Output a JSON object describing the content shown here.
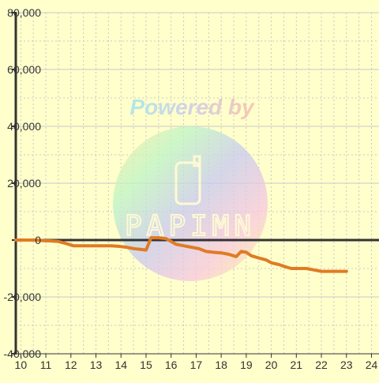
{
  "colors": {
    "background": "#ffffcc",
    "grid": "#c8c8c8",
    "axis": "#333333",
    "zero_line": "#333333",
    "series": "#e07b24"
  },
  "watermark": {
    "text": "Powered by",
    "logo_text": "PAPIMN",
    "icon": "phone-logo-icon"
  },
  "chart_data": {
    "type": "line",
    "title": "",
    "xlabel": "",
    "ylabel": "",
    "xlim": [
      9.8,
      24.3
    ],
    "ylim": [
      -40000,
      80000
    ],
    "grid": true,
    "x_ticks": [
      10,
      11,
      12,
      13,
      14,
      15,
      16,
      17,
      18,
      19,
      20,
      21,
      22,
      23,
      24
    ],
    "x_tick_labels": [
      "10",
      "11",
      "12",
      "13",
      "14",
      "15",
      "16",
      "17",
      "18",
      "19",
      "20",
      "21",
      "22",
      "23",
      "24"
    ],
    "y_ticks": [
      -40000,
      -20000,
      0,
      20000,
      40000,
      60000,
      80000
    ],
    "y_tick_labels": [
      "-40,000",
      "-20,000",
      "0",
      "20,000",
      "40,000",
      "60,000",
      "80,000"
    ],
    "series": [
      {
        "x": [
          9.8,
          10.0,
          10.3,
          10.6,
          10.9,
          11.2,
          11.5,
          11.8,
          12.1,
          12.4,
          12.7,
          13.0,
          13.3,
          13.6,
          13.9,
          14.2,
          14.5,
          14.8,
          15.0,
          15.2,
          15.5,
          15.8,
          16.0,
          16.2,
          16.5,
          16.8,
          17.1,
          17.4,
          17.7,
          18.0,
          18.3,
          18.6,
          18.8,
          19.0,
          19.2,
          19.5,
          19.8,
          20.0,
          20.3,
          20.6,
          20.8,
          21.0,
          21.4,
          21.7,
          22.0,
          22.5,
          23.0
        ],
        "y": [
          0,
          0,
          0,
          0,
          -200,
          -300,
          -500,
          -1200,
          -2000,
          -2000,
          -2000,
          -2000,
          -2000,
          -2000,
          -2200,
          -2500,
          -3000,
          -3300,
          -3500,
          800,
          800,
          500,
          -500,
          -1500,
          -2000,
          -2500,
          -3000,
          -4000,
          -4300,
          -4500,
          -5000,
          -5800,
          -4000,
          -4300,
          -5500,
          -6300,
          -7000,
          -8000,
          -8600,
          -9500,
          -10000,
          -10000,
          -10000,
          -10500,
          -11000,
          -11000,
          -11000
        ]
      }
    ]
  }
}
